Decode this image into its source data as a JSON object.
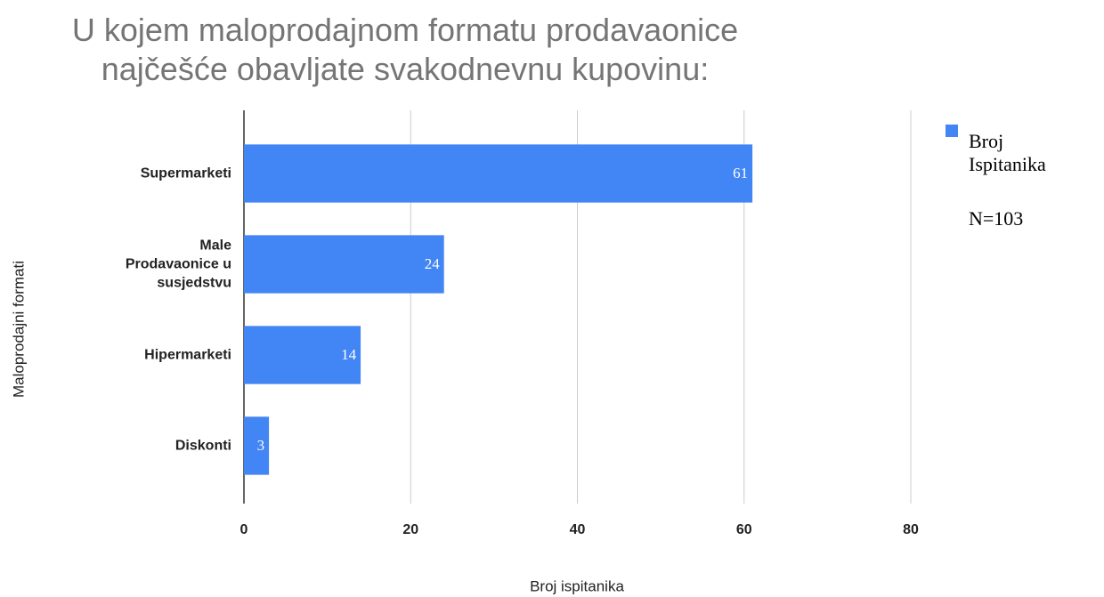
{
  "chart_data": {
    "type": "bar",
    "orientation": "horizontal",
    "title": "U kojem maloprodajnom formatu prodavaonice najčešće obavljate svakodnevnu kupovinu:",
    "x_label": "Broj ispitanika",
    "y_label": "Maloprodajni formati",
    "categories": [
      "Supermarketi",
      "Male Prodavaonice u susjedstvu",
      "Hipermarketi",
      "Diskonti"
    ],
    "series": [
      {
        "name": "Broj Ispitanika",
        "color": "#4285f4",
        "values": [
          61,
          24,
          14,
          3
        ]
      }
    ],
    "annotation": "N=103",
    "xlim": [
      0,
      80
    ],
    "xticks": [
      0,
      20,
      40,
      60,
      80
    ],
    "grid": true,
    "legend": "right"
  }
}
